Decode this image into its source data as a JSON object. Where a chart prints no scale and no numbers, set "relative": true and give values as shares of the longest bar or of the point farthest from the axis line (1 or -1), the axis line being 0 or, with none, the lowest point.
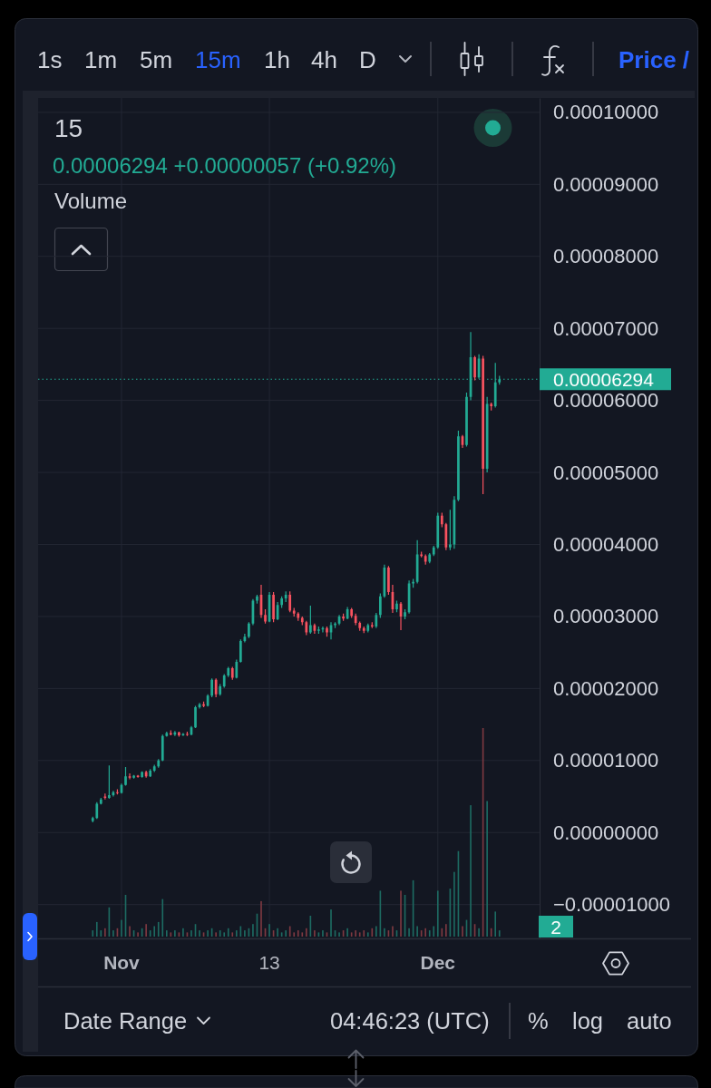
{
  "chart_data": [
    {
      "type": "candlestick",
      "title": "15",
      "subtitle": "0.00006294 +0.00000057 (+0.92%)",
      "categories": [
        null,
        null,
        null,
        null,
        null,
        null,
        null,
        "Nov",
        null,
        null,
        null,
        null,
        null,
        null,
        null,
        null,
        null,
        null,
        null,
        null,
        null,
        null,
        null,
        null,
        null,
        null,
        null,
        null,
        null,
        null,
        null,
        null,
        null,
        null,
        null,
        null,
        null,
        null,
        null,
        null,
        null,
        null,
        null,
        "13",
        null,
        null,
        null,
        null,
        null,
        null,
        null,
        null,
        null,
        null,
        null,
        null,
        null,
        null,
        null,
        null,
        null,
        null,
        null,
        null,
        null,
        null,
        null,
        null,
        null,
        null,
        null,
        null,
        null,
        null,
        null,
        null,
        null,
        null,
        null,
        null,
        null,
        null,
        null,
        null,
        "Dec",
        null,
        null,
        null,
        null,
        null,
        null,
        null,
        null,
        null,
        null,
        null,
        null,
        null,
        null,
        null
      ],
      "ohlc": [
        [
          1.6e-06,
          2.2e-06,
          1.4e-06,
          2e-06
        ],
        [
          2e-06,
          4.2e-06,
          1.9e-06,
          4e-06
        ],
        [
          4e-06,
          4.8e-06,
          3.9e-06,
          4.6e-06
        ],
        [
          5e-06,
          5.4e-06,
          4.6e-06,
          4.8e-06
        ],
        [
          4.8e-06,
          9.3e-06,
          4.7e-06,
          5.2e-06
        ],
        [
          5.2e-06,
          5.8e-06,
          5e-06,
          5.6e-06
        ],
        [
          5.6e-06,
          6e-06,
          5.3e-06,
          5.5e-06
        ],
        [
          5.5e-06,
          6.8e-06,
          5.4e-06,
          6.6e-06
        ],
        [
          6.6e-06,
          9.1e-06,
          6.5e-06,
          7.8e-06
        ],
        [
          7.8e-06,
          8.2e-06,
          7.4e-06,
          7.6e-06
        ],
        [
          7.6e-06,
          8e-06,
          7.5e-06,
          7.9e-06
        ],
        [
          7.9e-06,
          8e-06,
          7.6e-06,
          7.7e-06
        ],
        [
          7.7e-06,
          8.5e-06,
          7.6e-06,
          8.4e-06
        ],
        [
          8.4e-06,
          8.6e-06,
          7.6e-06,
          7.8e-06
        ],
        [
          7.8e-06,
          8.8e-06,
          7.7e-06,
          8.6e-06
        ],
        [
          8.6e-06,
          9.4e-06,
          8.4e-06,
          9.2e-06
        ],
        [
          9.2e-06,
          1.02e-05,
          9e-06,
          1e-05
        ],
        [
          1e-05,
          1.36e-05,
          9.9e-06,
          1.34e-05
        ],
        [
          1.34e-05,
          1.4e-05,
          1.33e-05,
          1.38e-05
        ],
        [
          1.38e-05,
          1.42e-05,
          1.35e-05,
          1.36e-05
        ],
        [
          1.36e-05,
          1.41e-05,
          1.34e-05,
          1.39e-05
        ],
        [
          1.39e-05,
          1.4e-05,
          1.33e-05,
          1.35e-05
        ],
        [
          1.35e-05,
          1.38e-05,
          1.34e-05,
          1.37e-05
        ],
        [
          1.37e-05,
          1.4e-05,
          1.34e-05,
          1.36e-05
        ],
        [
          1.36e-05,
          1.48e-05,
          1.35e-05,
          1.46e-05
        ],
        [
          1.46e-05,
          1.76e-05,
          1.45e-05,
          1.74e-05
        ],
        [
          1.74e-05,
          1.8e-05,
          1.72e-05,
          1.78e-05
        ],
        [
          1.78e-05,
          1.82e-05,
          1.74e-05,
          1.76e-05
        ],
        [
          1.76e-05,
          1.92e-05,
          1.75e-05,
          1.9e-05
        ],
        [
          1.9e-05,
          2.14e-05,
          1.88e-05,
          2.12e-05
        ],
        [
          2.12e-05,
          2.14e-05,
          1.88e-05,
          1.92e-05
        ],
        [
          1.92e-05,
          2.06e-05,
          1.9e-05,
          2.03e-05
        ],
        [
          2.03e-05,
          2.2e-05,
          2.01e-05,
          2.18e-05
        ],
        [
          2.18e-05,
          2.3e-05,
          2.16e-05,
          2.28e-05
        ],
        [
          2.28e-05,
          2.3e-05,
          2.12e-05,
          2.15e-05
        ],
        [
          2.15e-05,
          2.4e-05,
          2.14e-05,
          2.37e-05
        ],
        [
          2.37e-05,
          2.68e-05,
          2.36e-05,
          2.66e-05
        ],
        [
          2.66e-05,
          2.76e-05,
          2.64e-05,
          2.72e-05
        ],
        [
          2.72e-05,
          2.92e-05,
          2.7e-05,
          2.9e-05
        ],
        [
          2.9e-05,
          3.24e-05,
          2.88e-05,
          3.22e-05
        ],
        [
          3.22e-05,
          3.3e-05,
          3.18e-05,
          3.28e-05
        ],
        [
          3.3e-05,
          3.44e-05,
          2.98e-05,
          3.02e-05
        ],
        [
          3.02e-05,
          3.1e-05,
          2.9e-05,
          2.93e-05
        ],
        [
          2.93e-05,
          3.34e-05,
          2.92e-05,
          3.3e-05
        ],
        [
          3.3e-05,
          3.34e-05,
          2.92e-05,
          2.96e-05
        ],
        [
          2.96e-05,
          3.2e-05,
          2.95e-05,
          3.16e-05
        ],
        [
          3.16e-05,
          3.28e-05,
          3.12e-05,
          3.25e-05
        ],
        [
          3.25e-05,
          3.35e-05,
          3.2e-05,
          3.3e-05
        ],
        [
          3.3e-05,
          3.35e-05,
          3.06e-05,
          3.08e-05
        ],
        [
          3.08e-05,
          3.12e-05,
          3e-05,
          3.04e-05
        ],
        [
          3.04e-05,
          3.06e-05,
          2.94e-05,
          2.98e-05
        ],
        [
          2.98e-05,
          3e-05,
          2.88e-05,
          2.92e-05
        ],
        [
          2.92e-05,
          2.94e-05,
          2.74e-05,
          2.78e-05
        ],
        [
          2.78e-05,
          3.15e-05,
          2.76e-05,
          2.88e-05
        ],
        [
          2.88e-05,
          2.9e-05,
          2.76e-05,
          2.8e-05
        ],
        [
          2.8e-05,
          2.86e-05,
          2.76e-05,
          2.82e-05
        ],
        [
          2.82e-05,
          2.86e-05,
          2.78e-05,
          2.84e-05
        ],
        [
          2.84e-05,
          2.86e-05,
          2.72e-05,
          2.78e-05
        ],
        [
          2.78e-05,
          2.92e-05,
          2.68e-05,
          2.88e-05
        ],
        [
          2.88e-05,
          2.92e-05,
          2.84e-05,
          2.9e-05
        ],
        [
          2.9e-05,
          3.02e-05,
          2.88e-05,
          3e-05
        ],
        [
          3e-05,
          3.04e-05,
          2.94e-05,
          2.97e-05
        ],
        [
          2.97e-05,
          3.13e-05,
          2.96e-05,
          3.1e-05
        ],
        [
          3.1e-05,
          3.12e-05,
          2.98e-05,
          3.01e-05
        ],
        [
          3.01e-05,
          3.04e-05,
          2.88e-05,
          2.91e-05
        ],
        [
          2.91e-05,
          2.93e-05,
          2.8e-05,
          2.84e-05
        ],
        [
          2.84e-05,
          2.86e-05,
          2.77e-05,
          2.8e-05
        ],
        [
          2.8e-05,
          2.9e-05,
          2.78e-05,
          2.88e-05
        ],
        [
          2.88e-05,
          2.92e-05,
          2.84e-05,
          2.86e-05
        ],
        [
          2.86e-05,
          3.05e-05,
          2.84e-05,
          3.02e-05
        ],
        [
          3.02e-05,
          3.32e-05,
          2.98e-05,
          3.28e-05
        ],
        [
          3.28e-05,
          3.72e-05,
          3.26e-05,
          3.68e-05
        ],
        [
          3.68e-05,
          3.7e-05,
          3.3e-05,
          3.34e-05
        ],
        [
          3.34e-05,
          3.44e-05,
          3.05e-05,
          3.1e-05
        ],
        [
          3.1e-05,
          3.22e-05,
          3.06e-05,
          3.18e-05
        ],
        [
          3.18e-05,
          3.2e-05,
          2.81e-05,
          3e-05
        ],
        [
          3e-05,
          3.1e-05,
          2.96e-05,
          3.06e-05
        ],
        [
          3.06e-05,
          3.5e-05,
          3.04e-05,
          3.46e-05
        ],
        [
          3.46e-05,
          3.52e-05,
          3.4e-05,
          3.48e-05
        ],
        [
          3.48e-05,
          4.06e-05,
          3.46e-05,
          3.86e-05
        ],
        [
          3.86e-05,
          3.9e-05,
          3.82e-05,
          3.84e-05
        ],
        [
          3.84e-05,
          3.86e-05,
          3.72e-05,
          3.76e-05
        ],
        [
          3.76e-05,
          3.88e-05,
          3.74e-05,
          3.86e-05
        ],
        [
          3.86e-05,
          3.98e-05,
          3.84e-05,
          3.96e-05
        ],
        [
          3.96e-05,
          4.44e-05,
          3.94e-05,
          4.4e-05
        ],
        [
          4.4e-05,
          4.44e-05,
          4.24e-05,
          4.28e-05
        ],
        [
          4.28e-05,
          4.3e-05,
          3.92e-05,
          3.96e-05
        ],
        [
          3.96e-05,
          4.48e-05,
          3.92e-05,
          4e-05
        ],
        [
          4e-05,
          4.67e-05,
          3.94e-05,
          4.62e-05
        ],
        [
          4.62e-05,
          5.58e-05,
          4.6e-05,
          5.5e-05
        ],
        [
          5.5e-05,
          5.52e-05,
          5.34e-05,
          5.38e-05
        ],
        [
          5.38e-05,
          6.11e-05,
          5.36e-05,
          6.05e-05
        ],
        [
          6.05e-05,
          6.95e-05,
          6e-05,
          6.6e-05
        ],
        [
          6.6e-05,
          6.62e-05,
          6.28e-05,
          6.32e-05
        ],
        [
          6.32e-05,
          6.64e-05,
          6.3e-05,
          6.58e-05
        ],
        [
          6.58e-05,
          6.62e-05,
          4.7e-05,
          5.05e-05
        ],
        [
          5.05e-05,
          6.05e-05,
          5e-05,
          5.95e-05
        ],
        [
          5.95e-05,
          5.97e-05,
          5.86e-05,
          5.92e-05
        ],
        [
          5.92e-05,
          6.52e-05,
          5.9e-05,
          6.25e-05
        ],
        [
          6.25e-05,
          6.34e-05,
          6.22e-05,
          6.294e-05
        ]
      ],
      "colors": [
        "#22ab94",
        "#22ab94",
        "#22ab94",
        "#f7525f",
        "#22ab94",
        "#22ab94",
        "#f7525f",
        "#22ab94",
        "#22ab94",
        "#f7525f",
        "#22ab94",
        "#f7525f",
        "#22ab94",
        "#f7525f",
        "#22ab94",
        "#22ab94",
        "#22ab94",
        "#22ab94",
        "#22ab94",
        "#f7525f",
        "#22ab94",
        "#f7525f",
        "#22ab94",
        "#f7525f",
        "#22ab94",
        "#22ab94",
        "#22ab94",
        "#f7525f",
        "#22ab94",
        "#22ab94",
        "#f7525f",
        "#22ab94",
        "#22ab94",
        "#22ab94",
        "#f7525f",
        "#22ab94",
        "#22ab94",
        "#22ab94",
        "#22ab94",
        "#22ab94",
        "#22ab94",
        "#f7525f",
        "#f7525f",
        "#22ab94",
        "#f7525f",
        "#22ab94",
        "#22ab94",
        "#22ab94",
        "#f7525f",
        "#f7525f",
        "#f7525f",
        "#f7525f",
        "#f7525f",
        "#22ab94",
        "#f7525f",
        "#22ab94",
        "#22ab94",
        "#f7525f",
        "#22ab94",
        "#22ab94",
        "#22ab94",
        "#f7525f",
        "#22ab94",
        "#f7525f",
        "#f7525f",
        "#f7525f",
        "#f7525f",
        "#22ab94",
        "#f7525f",
        "#22ab94",
        "#22ab94",
        "#22ab94",
        "#f7525f",
        "#f7525f",
        "#22ab94",
        "#f7525f",
        "#22ab94",
        "#22ab94",
        "#22ab94",
        "#22ab94",
        "#f7525f",
        "#f7525f",
        "#22ab94",
        "#22ab94",
        "#22ab94",
        "#f7525f",
        "#f7525f",
        "#22ab94",
        "#22ab94",
        "#22ab94",
        "#f7525f",
        "#22ab94",
        "#22ab94",
        "#f7525f",
        "#22ab94",
        "#f7525f",
        "#22ab94",
        "#f7525f",
        "#22ab94",
        "#22ab94"
      ],
      "ylim": [
        -1.47e-05,
        0.000102
      ],
      "yticks": [
        {
          "value": -1e-05,
          "label": "−0.00001000"
        },
        {
          "value": 0,
          "label": "0.00000000"
        },
        {
          "value": 1e-05,
          "label": "0.00001000"
        },
        {
          "value": 2e-05,
          "label": "0.00002000"
        },
        {
          "value": 3e-05,
          "label": "0.00003000"
        },
        {
          "value": 4e-05,
          "label": "0.00004000"
        },
        {
          "value": 5e-05,
          "label": "0.00005000"
        },
        {
          "value": 6e-05,
          "label": "0.00006000"
        },
        {
          "value": 7e-05,
          "label": "0.00007000"
        },
        {
          "value": 8e-05,
          "label": "0.00008000"
        },
        {
          "value": 9e-05,
          "label": "0.00009000"
        },
        {
          "value": 0.0001,
          "label": "0.00010000"
        }
      ],
      "grid": true,
      "ref_lines": [
        {
          "axis": "y",
          "value": 6.294e-05,
          "label": "0.00006294",
          "color": "#22ab94",
          "line_style": "dotted"
        }
      ],
      "annotations": [
        "1s",
        "1m",
        "5m",
        "15m",
        "1h",
        "4h",
        "D",
        "Price /",
        "Date Range",
        "04:46:23 (UTC)",
        "%",
        "log",
        "auto"
      ]
    },
    {
      "type": "bar",
      "title": "Volume",
      "relative": true,
      "categories": [
        null,
        null,
        null,
        null,
        null,
        null,
        null,
        null,
        null,
        null,
        null,
        null,
        null,
        null,
        null,
        null,
        null,
        null,
        null,
        null,
        null,
        null,
        null,
        null,
        null,
        null,
        null,
        null,
        null,
        null,
        null,
        null,
        null,
        null,
        null,
        null,
        null,
        null,
        null,
        null,
        null,
        null,
        null,
        null,
        null,
        null,
        null,
        null,
        null,
        null,
        null,
        null,
        null,
        null,
        null,
        null,
        null,
        null,
        null,
        null,
        null,
        null,
        null,
        null,
        null,
        null,
        null,
        null,
        null,
        null,
        null,
        null,
        null,
        null,
        null,
        null,
        null,
        null,
        null,
        null,
        null,
        null,
        null,
        null,
        null,
        null,
        null,
        null,
        null,
        null,
        null,
        null,
        null,
        null,
        null,
        null,
        null,
        null,
        null,
        null
      ],
      "values": [
        0.03,
        0.07,
        0.03,
        0.04,
        0.14,
        0.03,
        0.04,
        0.08,
        0.2,
        0.05,
        0.03,
        0.02,
        0.04,
        0.06,
        0.03,
        0.05,
        0.07,
        0.18,
        0.03,
        0.02,
        0.03,
        0.02,
        0.04,
        0.02,
        0.03,
        0.06,
        0.03,
        0.02,
        0.03,
        0.04,
        0.02,
        0.03,
        0.02,
        0.04,
        0.02,
        0.03,
        0.05,
        0.03,
        0.04,
        0.06,
        0.11,
        0.17,
        0.04,
        0.06,
        0.03,
        0.04,
        0.02,
        0.03,
        0.05,
        0.02,
        0.03,
        0.02,
        0.04,
        0.1,
        0.03,
        0.02,
        0.03,
        0.02,
        0.13,
        0.03,
        0.02,
        0.03,
        0.04,
        0.02,
        0.03,
        0.02,
        0.03,
        0.02,
        0.04,
        0.05,
        0.22,
        0.04,
        0.03,
        0.05,
        0.03,
        0.22,
        0.2,
        0.04,
        0.27,
        0.05,
        0.03,
        0.04,
        0.03,
        0.05,
        0.22,
        0.04,
        0.06,
        0.23,
        0.31,
        0.41,
        0.05,
        0.08,
        0.63,
        0.06,
        0.04,
        1,
        0.65,
        0.04,
        0.12,
        0.03
      ],
      "colors": [
        "#1d6b62",
        "#1d6b62",
        "#1d6b62",
        "#7e3941",
        "#1d6b62",
        "#1d6b62",
        "#7e3941",
        "#1d6b62",
        "#1d6b62",
        "#7e3941",
        "#1d6b62",
        "#7e3941",
        "#1d6b62",
        "#7e3941",
        "#1d6b62",
        "#1d6b62",
        "#1d6b62",
        "#1d6b62",
        "#1d6b62",
        "#7e3941",
        "#1d6b62",
        "#7e3941",
        "#1d6b62",
        "#7e3941",
        "#1d6b62",
        "#1d6b62",
        "#1d6b62",
        "#7e3941",
        "#1d6b62",
        "#1d6b62",
        "#7e3941",
        "#1d6b62",
        "#1d6b62",
        "#1d6b62",
        "#7e3941",
        "#1d6b62",
        "#1d6b62",
        "#1d6b62",
        "#1d6b62",
        "#1d6b62",
        "#1d6b62",
        "#7e3941",
        "#7e3941",
        "#1d6b62",
        "#7e3941",
        "#1d6b62",
        "#1d6b62",
        "#1d6b62",
        "#7e3941",
        "#7e3941",
        "#7e3941",
        "#7e3941",
        "#7e3941",
        "#1d6b62",
        "#7e3941",
        "#1d6b62",
        "#1d6b62",
        "#7e3941",
        "#1d6b62",
        "#1d6b62",
        "#1d6b62",
        "#7e3941",
        "#1d6b62",
        "#7e3941",
        "#7e3941",
        "#7e3941",
        "#7e3941",
        "#1d6b62",
        "#7e3941",
        "#1d6b62",
        "#1d6b62",
        "#1d6b62",
        "#7e3941",
        "#7e3941",
        "#1d6b62",
        "#7e3941",
        "#1d6b62",
        "#1d6b62",
        "#1d6b62",
        "#1d6b62",
        "#7e3941",
        "#7e3941",
        "#1d6b62",
        "#1d6b62",
        "#1d6b62",
        "#7e3941",
        "#7e3941",
        "#1d6b62",
        "#1d6b62",
        "#1d6b62",
        "#7e3941",
        "#1d6b62",
        "#1d6b62",
        "#7e3941",
        "#1d6b62",
        "#7e3941",
        "#1d6b62",
        "#7e3941",
        "#1d6b62",
        "#1d6b62"
      ],
      "annotations": [
        "2"
      ]
    }
  ]
}
